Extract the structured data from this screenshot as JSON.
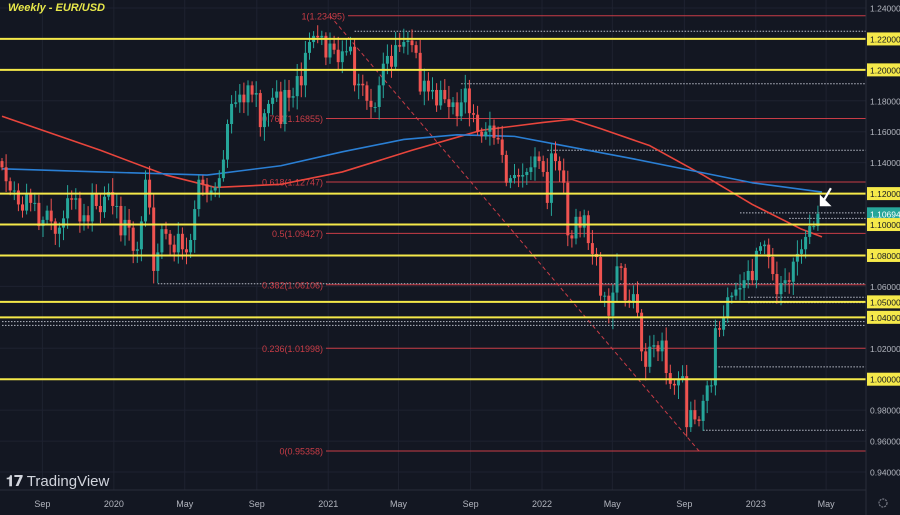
{
  "header": {
    "title": "Weekly - EUR/USD"
  },
  "branding": {
    "logo_text": "TradingView"
  },
  "colors": {
    "background": "#131722",
    "up": "#26a69a",
    "down": "#ef5350",
    "support_line": "#f5e94a",
    "fib_line": "#c83c46",
    "ma_red": "#e8453c",
    "ma_blue": "#2a7fd4",
    "last_price": "#26a69a"
  },
  "chart_data": {
    "type": "candlestick",
    "title": "Weekly - EUR/USD",
    "x_start": "2019-06-24",
    "interval": "weekly",
    "ylim": [
      0.935,
      1.245
    ],
    "grid": true,
    "x_tick_labels": [
      {
        "date": "2019-09-01",
        "label": "Sep"
      },
      {
        "date": "2020-01-01",
        "label": "2020"
      },
      {
        "date": "2020-05-01",
        "label": "May"
      },
      {
        "date": "2020-09-01",
        "label": "Sep"
      },
      {
        "date": "2021-01-01",
        "label": "2021"
      },
      {
        "date": "2021-05-01",
        "label": "May"
      },
      {
        "date": "2021-09-01",
        "label": "Sep"
      },
      {
        "date": "2022-01-01",
        "label": "2022"
      },
      {
        "date": "2022-05-01",
        "label": "May"
      },
      {
        "date": "2022-09-01",
        "label": "Sep"
      },
      {
        "date": "2023-01-01",
        "label": "2023"
      },
      {
        "date": "2023-05-01",
        "label": "May"
      }
    ],
    "y_tick_labels": [
      {
        "value": 1.24,
        "label": "1.24000",
        "style": "plain"
      },
      {
        "value": 1.22,
        "label": "1.22000",
        "style": "level"
      },
      {
        "value": 1.2,
        "label": "1.20000",
        "style": "level"
      },
      {
        "value": 1.18,
        "label": "1.18000",
        "style": "plain"
      },
      {
        "value": 1.16,
        "label": "1.16000",
        "style": "plain"
      },
      {
        "value": 1.14,
        "label": "1.14000",
        "style": "plain"
      },
      {
        "value": 1.12,
        "label": "1.12000",
        "style": "level"
      },
      {
        "value": 1.10694,
        "label": "1.10694",
        "style": "last"
      },
      {
        "value": 1.1,
        "label": "1.10000",
        "style": "level"
      },
      {
        "value": 1.08,
        "label": "1.08000",
        "style": "level"
      },
      {
        "value": 1.06,
        "label": "1.06000",
        "style": "plain"
      },
      {
        "value": 1.05,
        "label": "1.05000",
        "style": "level"
      },
      {
        "value": 1.04,
        "label": "1.04000",
        "style": "level"
      },
      {
        "value": 1.02,
        "label": "1.02000",
        "style": "plain"
      },
      {
        "value": 1.0,
        "label": "1.00000",
        "style": "level"
      },
      {
        "value": 0.98,
        "label": "0.98000",
        "style": "plain"
      },
      {
        "value": 0.96,
        "label": "0.96000",
        "style": "plain"
      },
      {
        "value": 0.94,
        "label": "0.94000",
        "style": "plain"
      }
    ],
    "weekly_closes": [
      1.137,
      1.128,
      1.122,
      1.122,
      1.113,
      1.109,
      1.12,
      1.114,
      1.114,
      1.099,
      1.103,
      1.109,
      1.102,
      1.094,
      1.098,
      1.104,
      1.117,
      1.116,
      1.117,
      1.102,
      1.106,
      1.102,
      1.12,
      1.112,
      1.108,
      1.118,
      1.121,
      1.112,
      1.112,
      1.093,
      1.103,
      1.098,
      1.083,
      1.084,
      1.102,
      1.129,
      1.111,
      1.07,
      1.082,
      1.097,
      1.094,
      1.087,
      1.082,
      1.094,
      1.084,
      1.082,
      1.09,
      1.11,
      1.129,
      1.126,
      1.12,
      1.122,
      1.124,
      1.13,
      1.142,
      1.165,
      1.178,
      1.179,
      1.184,
      1.179,
      1.19,
      1.184,
      1.185,
      1.163,
      1.172,
      1.178,
      1.182,
      1.186,
      1.165,
      1.187,
      1.182,
      1.183,
      1.196,
      1.19,
      1.211,
      1.218,
      1.222,
      1.221,
      1.222,
      1.208,
      1.217,
      1.213,
      1.205,
      1.212,
      1.212,
      1.215,
      1.19,
      1.191,
      1.19,
      1.18,
      1.176,
      1.176,
      1.19,
      1.204,
      1.209,
      1.202,
      1.216,
      1.215,
      1.218,
      1.219,
      1.216,
      1.211,
      1.186,
      1.193,
      1.186,
      1.187,
      1.177,
      1.187,
      1.181,
      1.176,
      1.179,
      1.17,
      1.179,
      1.188,
      1.172,
      1.171,
      1.16,
      1.157,
      1.16,
      1.164,
      1.156,
      1.155,
      1.145,
      1.127,
      1.13,
      1.132,
      1.131,
      1.132,
      1.134,
      1.137,
      1.144,
      1.141,
      1.134,
      1.114,
      1.146,
      1.141,
      1.135,
      1.127,
      1.093,
      1.091,
      1.105,
      1.098,
      1.106,
      1.088,
      1.081,
      1.079,
      1.054,
      1.054,
      1.041,
      1.056,
      1.073,
      1.072,
      1.051,
      1.05,
      1.055,
      1.043,
      1.018,
      1.008,
      1.021,
      1.022,
      1.018,
      1.025,
      1.004,
      0.997,
      0.996,
      1.0,
      1.002,
      0.969,
      0.98,
      0.974,
      0.973,
      0.986,
      0.996,
      0.996,
      1.033,
      1.032,
      1.04,
      1.053,
      1.054,
      1.058,
      1.059,
      1.064,
      1.07,
      1.064,
      1.083,
      1.086,
      1.087,
      1.079,
      1.068,
      1.055,
      1.062,
      1.064,
      1.063,
      1.076,
      1.081,
      1.084,
      1.092,
      1.099,
      1.099,
      1.10694
    ],
    "moving_averages": [
      {
        "color": "red",
        "points": [
          [
            "2019-06-24",
            1.17
          ],
          [
            "2019-12-09",
            1.148
          ],
          [
            "2020-03-30",
            1.132
          ],
          [
            "2020-06-22",
            1.124
          ],
          [
            "2020-10-12",
            1.126
          ],
          [
            "2021-01-25",
            1.134
          ],
          [
            "2021-05-24",
            1.148
          ],
          [
            "2021-09-20",
            1.161
          ],
          [
            "2022-01-03",
            1.166
          ],
          [
            "2022-02-21",
            1.168
          ],
          [
            "2022-04-11",
            1.162
          ],
          [
            "2022-07-04",
            1.151
          ],
          [
            "2022-10-03",
            1.132
          ],
          [
            "2022-12-26",
            1.113
          ],
          [
            "2023-03-20",
            1.097
          ],
          [
            "2023-04-24",
            1.092
          ]
        ]
      },
      {
        "color": "blue",
        "points": [
          [
            "2019-06-24",
            1.136
          ],
          [
            "2019-12-09",
            1.134
          ],
          [
            "2020-06-08",
            1.132
          ],
          [
            "2020-10-12",
            1.138
          ],
          [
            "2021-01-25",
            1.147
          ],
          [
            "2021-05-10",
            1.155
          ],
          [
            "2021-08-09",
            1.158
          ],
          [
            "2021-11-15",
            1.157
          ],
          [
            "2022-02-07",
            1.151
          ],
          [
            "2022-05-30",
            1.143
          ],
          [
            "2022-09-12",
            1.135
          ],
          [
            "2022-12-26",
            1.127
          ],
          [
            "2023-04-24",
            1.121
          ]
        ]
      }
    ],
    "horizontal_levels": [
      1.22,
      1.2,
      1.12,
      1.1,
      1.08,
      1.05,
      1.04,
      1.0
    ],
    "fibonacci": {
      "from": {
        "date": "2021-01-04",
        "price": 1.23495
      },
      "to": {
        "date": "2022-09-26",
        "price": 0.95358
      },
      "levels": [
        {
          "price": 1.23495,
          "label": "1(1.23495)"
        },
        {
          "price": 1.16855,
          "label": "0.764(1.16855)"
        },
        {
          "price": 1.12747,
          "label": "0.618(1.12747)"
        },
        {
          "price": 1.09427,
          "label": "0.5(1.09427)"
        },
        {
          "price": 1.06106,
          "label": "0.382(1.06106)"
        },
        {
          "price": 1.01998,
          "label": "0.236(1.01998)"
        },
        {
          "price": 0.95358,
          "label": "0(0.95358)"
        }
      ]
    },
    "dotted_levels": [
      {
        "price": 1.225,
        "from": "2021-02-15"
      },
      {
        "price": 1.191,
        "from": "2021-08-16"
      },
      {
        "price": 1.148,
        "from": "2022-01-10"
      },
      {
        "price": 1.1075,
        "from": "2022-12-05"
      },
      {
        "price": 1.104,
        "from": "2023-02-27"
      },
      {
        "price": 1.0617,
        "from": "2020-03-16"
      },
      {
        "price": 1.053,
        "from": "2022-12-19"
      },
      {
        "price": 1.0495,
        "from": "2022-12-19"
      },
      {
        "price": 1.0372,
        "from": "2019-06-24"
      },
      {
        "price": 1.0348,
        "from": "2019-06-24"
      },
      {
        "price": 1.008,
        "from": "2022-10-24"
      },
      {
        "price": 0.967,
        "from": "2022-10-03"
      }
    ],
    "last_price": 1.10694,
    "annotation": "arrow pointing to latest candle"
  }
}
